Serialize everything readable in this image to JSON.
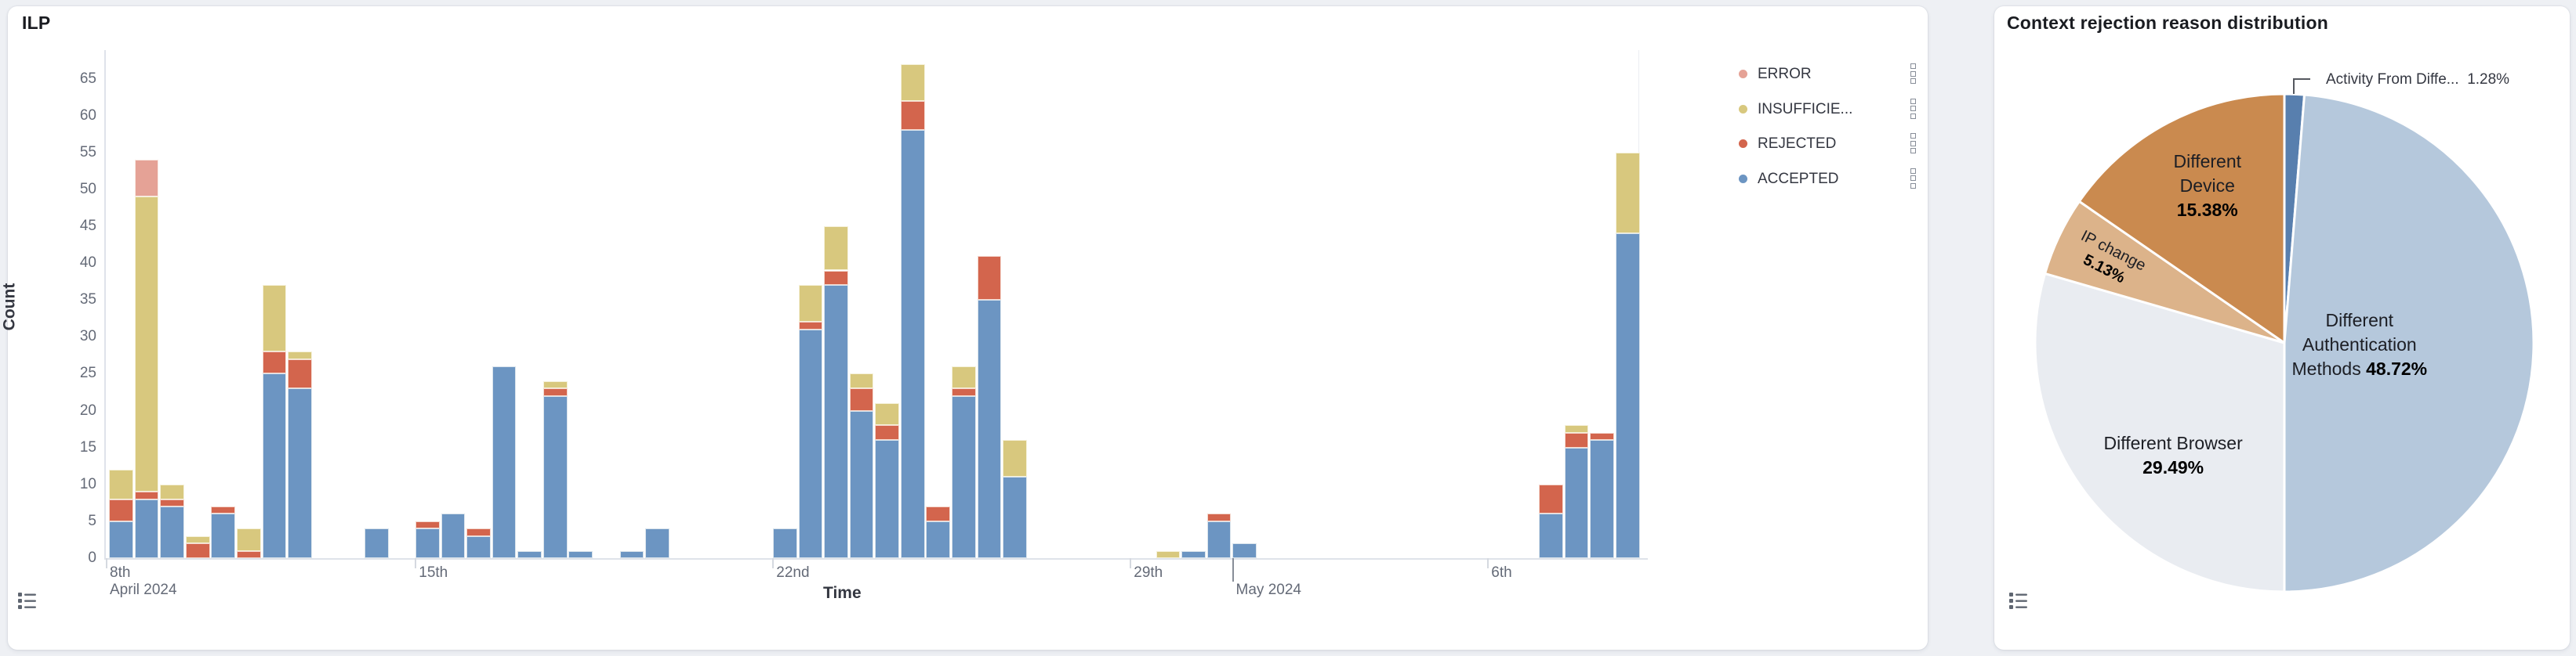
{
  "page": {
    "background": "#eef0f4"
  },
  "left_panel": {
    "title": "ILP",
    "y_axis": {
      "label": "Count",
      "ticks": [
        0,
        5,
        10,
        15,
        20,
        25,
        30,
        35,
        40,
        45,
        50,
        55,
        60,
        65
      ]
    },
    "x_axis": {
      "label": "Time",
      "ticks": [
        {
          "date": "2024-04-08",
          "label": "8th"
        },
        {
          "date": "2024-04-15",
          "label": "15th"
        },
        {
          "date": "2024-04-22",
          "label": "22nd"
        },
        {
          "date": "2024-04-29",
          "label": "29th"
        },
        {
          "date": "2024-05-06",
          "label": "6th"
        }
      ],
      "month_ticks": [
        {
          "date": "2024-04-08",
          "label": "April 2024",
          "show_tick": false
        },
        {
          "date": "2024-05-01",
          "label": "May 2024",
          "show_tick": true
        }
      ]
    },
    "legend": [
      {
        "label": "ERROR",
        "series": "error",
        "color": "#e5a296"
      },
      {
        "label": "INSUFFICIE...",
        "series": "insufficient",
        "color": "#d8c87e"
      },
      {
        "label": "REJECTED",
        "series": "rejected",
        "color": "#d3654d"
      },
      {
        "label": "ACCEPTED",
        "series": "accepted",
        "color": "#6c95c2"
      }
    ]
  },
  "right_panel": {
    "title": "Context rejection reason distribution"
  },
  "chart_data": [
    {
      "type": "bar",
      "title": "ILP",
      "stacked": true,
      "xlabel": "Time",
      "ylabel": "Count",
      "ylim": [
        0,
        69
      ],
      "bin_hours": 12,
      "stack_order_bottom_to_top": [
        "accepted",
        "rejected",
        "insufficient",
        "error"
      ],
      "colors": {
        "accepted": "#6c95c2",
        "rejected": "#d3654d",
        "insufficient": "#d8c87e",
        "error": "#e5a296"
      },
      "bars": [
        {
          "date": "2024-04-09",
          "half": "AM",
          "accepted": 5,
          "rejected": 3,
          "insufficient": 4,
          "error": 0
        },
        {
          "date": "2024-04-09",
          "half": "PM",
          "accepted": 8,
          "rejected": 1,
          "insufficient": 40,
          "error": 5
        },
        {
          "date": "2024-04-10",
          "half": "AM",
          "accepted": 7,
          "rejected": 1,
          "insufficient": 2,
          "error": 0
        },
        {
          "date": "2024-04-10",
          "half": "PM",
          "accepted": 0,
          "rejected": 2,
          "insufficient": 1,
          "error": 0
        },
        {
          "date": "2024-04-11",
          "half": "AM",
          "accepted": 6,
          "rejected": 1,
          "insufficient": 0,
          "error": 0
        },
        {
          "date": "2024-04-11",
          "half": "PM",
          "accepted": 0,
          "rejected": 1,
          "insufficient": 3,
          "error": 0
        },
        {
          "date": "2024-04-12",
          "half": "AM",
          "accepted": 25,
          "rejected": 3,
          "insufficient": 9,
          "error": 0
        },
        {
          "date": "2024-04-12",
          "half": "PM",
          "accepted": 23,
          "rejected": 4,
          "insufficient": 1,
          "error": 0
        },
        {
          "date": "2024-04-14",
          "half": "AM",
          "accepted": 4,
          "rejected": 0,
          "insufficient": 0,
          "error": 0
        },
        {
          "date": "2024-04-15",
          "half": "AM",
          "accepted": 4,
          "rejected": 1,
          "insufficient": 0,
          "error": 0
        },
        {
          "date": "2024-04-15",
          "half": "PM",
          "accepted": 6,
          "rejected": 0,
          "insufficient": 0,
          "error": 0
        },
        {
          "date": "2024-04-16",
          "half": "AM",
          "accepted": 3,
          "rejected": 1,
          "insufficient": 0,
          "error": 0
        },
        {
          "date": "2024-04-16",
          "half": "PM",
          "accepted": 26,
          "rejected": 0,
          "insufficient": 0,
          "error": 0
        },
        {
          "date": "2024-04-17",
          "half": "AM",
          "accepted": 1,
          "rejected": 0,
          "insufficient": 0,
          "error": 0
        },
        {
          "date": "2024-04-17",
          "half": "PM",
          "accepted": 22,
          "rejected": 1,
          "insufficient": 1,
          "error": 0
        },
        {
          "date": "2024-04-18",
          "half": "AM",
          "accepted": 1,
          "rejected": 0,
          "insufficient": 0,
          "error": 0
        },
        {
          "date": "2024-04-19",
          "half": "AM",
          "accepted": 1,
          "rejected": 0,
          "insufficient": 0,
          "error": 0
        },
        {
          "date": "2024-04-19",
          "half": "PM",
          "accepted": 4,
          "rejected": 0,
          "insufficient": 0,
          "error": 0
        },
        {
          "date": "2024-04-22",
          "half": "AM",
          "accepted": 4,
          "rejected": 0,
          "insufficient": 0,
          "error": 0
        },
        {
          "date": "2024-04-22",
          "half": "PM",
          "accepted": 31,
          "rejected": 1,
          "insufficient": 5,
          "error": 0
        },
        {
          "date": "2024-04-23",
          "half": "AM",
          "accepted": 37,
          "rejected": 2,
          "insufficient": 6,
          "error": 0
        },
        {
          "date": "2024-04-23",
          "half": "PM",
          "accepted": 20,
          "rejected": 3,
          "insufficient": 2,
          "error": 0
        },
        {
          "date": "2024-04-24",
          "half": "AM",
          "accepted": 16,
          "rejected": 2,
          "insufficient": 3,
          "error": 0
        },
        {
          "date": "2024-04-24",
          "half": "PM",
          "accepted": 58,
          "rejected": 4,
          "insufficient": 5,
          "error": 0
        },
        {
          "date": "2024-04-25",
          "half": "AM",
          "accepted": 5,
          "rejected": 2,
          "insufficient": 0,
          "error": 0
        },
        {
          "date": "2024-04-25",
          "half": "PM",
          "accepted": 22,
          "rejected": 1,
          "insufficient": 3,
          "error": 0
        },
        {
          "date": "2024-04-26",
          "half": "AM",
          "accepted": 35,
          "rejected": 6,
          "insufficient": 0,
          "error": 0
        },
        {
          "date": "2024-04-26",
          "half": "PM",
          "accepted": 11,
          "rejected": 0,
          "insufficient": 5,
          "error": 0
        },
        {
          "date": "2024-04-29",
          "half": "PM",
          "accepted": 0,
          "rejected": 0,
          "insufficient": 1,
          "error": 0
        },
        {
          "date": "2024-04-30",
          "half": "AM",
          "accepted": 1,
          "rejected": 0,
          "insufficient": 0,
          "error": 0
        },
        {
          "date": "2024-04-30",
          "half": "PM",
          "accepted": 5,
          "rejected": 1,
          "insufficient": 0,
          "error": 0
        },
        {
          "date": "2024-05-01",
          "half": "AM",
          "accepted": 2,
          "rejected": 0,
          "insufficient": 0,
          "error": 0
        },
        {
          "date": "2024-05-07",
          "half": "AM",
          "accepted": 6,
          "rejected": 4,
          "insufficient": 0,
          "error": 0
        },
        {
          "date": "2024-05-07",
          "half": "PM",
          "accepted": 15,
          "rejected": 2,
          "insufficient": 1,
          "error": 0
        },
        {
          "date": "2024-05-08",
          "half": "AM",
          "accepted": 16,
          "rejected": 1,
          "insufficient": 0,
          "error": 0
        },
        {
          "date": "2024-05-08",
          "half": "PM",
          "accepted": 44,
          "rejected": 0,
          "insufficient": 11,
          "error": 0
        }
      ]
    },
    {
      "type": "pie",
      "title": "Context rejection reason distribution",
      "clockwise_from_top": true,
      "slices": [
        {
          "label": "Activity From Diffe...",
          "pct": 1.28,
          "pct_label": "1.28%",
          "color": "#587fae",
          "label_style": "callout"
        },
        {
          "label": "Different Authentication Methods",
          "pct": 48.72,
          "pct_label": "48.72%",
          "color": "#b5c8dc",
          "label_lines": [
            "Different",
            "Authentication",
            "Methods"
          ]
        },
        {
          "label": "Different Browser",
          "pct": 29.49,
          "pct_label": "29.49%",
          "color": "#e9ecf1",
          "label_lines": [
            "Different Browser"
          ]
        },
        {
          "label": "IP change",
          "pct": 5.13,
          "pct_label": "5.13%",
          "color": "#dcb38a",
          "label_lines": [
            "IP change"
          ],
          "rotation": 27
        },
        {
          "label": "Different Device",
          "pct": 15.38,
          "pct_label": "15.38%",
          "color": "#ca8a4f",
          "label_lines": [
            "Different",
            "Device"
          ]
        }
      ]
    }
  ]
}
